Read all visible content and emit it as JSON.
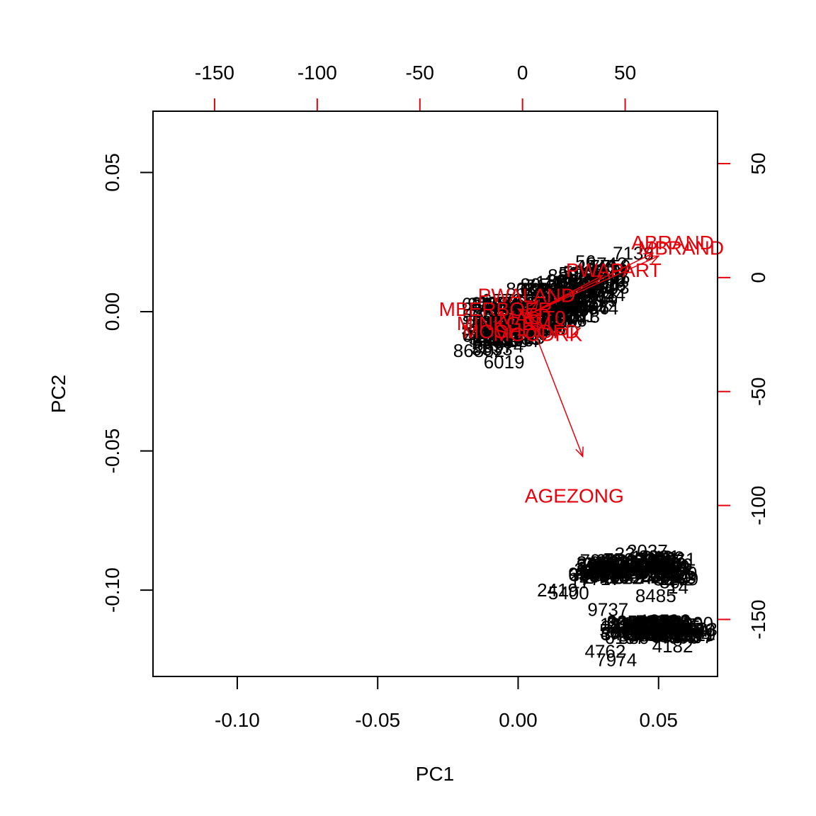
{
  "chart_data": {
    "type": "scatter",
    "title": "",
    "xlabel": "PC1",
    "ylabel": "PC2",
    "xlim": [
      -0.13,
      0.071
    ],
    "ylim": [
      -0.131,
      0.072
    ],
    "x_ticks": [
      -0.1,
      -0.05,
      0.0,
      0.05
    ],
    "x_tick_labels": [
      "-0.10",
      "-0.05",
      "0.00",
      "0.05"
    ],
    "y_ticks": [
      -0.1,
      -0.05,
      0.0,
      0.05
    ],
    "y_tick_labels": [
      "-0.10",
      "-0.05",
      "0.00",
      "0.05"
    ],
    "top_axis": {
      "color": "#e8000b",
      "ticks": [
        -150,
        -100,
        -50,
        0,
        50
      ],
      "tick_labels": [
        "-150",
        "-100",
        "-50",
        "0",
        "50"
      ],
      "lim": [
        -180,
        95
      ]
    },
    "right_axis": {
      "color": "#e8000b",
      "ticks": [
        50,
        0,
        -50,
        -100,
        -150
      ],
      "tick_labels": [
        "50",
        "0",
        "-50",
        "-100",
        "-150"
      ],
      "lim": [
        -175,
        73
      ]
    },
    "observation_color": "#000000",
    "variable_color": "#e8000b",
    "observations": [
      {
        "label": "2037",
        "x": 0.046,
        "y": -0.086
      },
      {
        "label": "32",
        "x": 0.038,
        "y": -0.087
      },
      {
        "label": "69",
        "x": 0.031,
        "y": -0.091
      },
      {
        "label": "61",
        "x": 0.027,
        "y": -0.093
      },
      {
        "label": "17",
        "x": 0.022,
        "y": -0.097
      },
      {
        "label": "2419",
        "x": 0.014,
        "y": -0.1
      },
      {
        "label": "5400",
        "x": 0.018,
        "y": -0.101
      },
      {
        "label": "30",
        "x": 0.054,
        "y": -0.097
      },
      {
        "label": "14",
        "x": 0.057,
        "y": -0.099
      },
      {
        "label": "8485",
        "x": 0.049,
        "y": -0.102
      },
      {
        "label": "9737",
        "x": 0.032,
        "y": -0.107
      },
      {
        "label": "85",
        "x": 0.041,
        "y": -0.112
      },
      {
        "label": "8516",
        "x": 0.054,
        "y": -0.111
      },
      {
        "label": "55",
        "x": 0.063,
        "y": -0.114
      },
      {
        "label": "8804",
        "x": 0.043,
        "y": -0.117
      },
      {
        "label": "4182",
        "x": 0.055,
        "y": -0.12
      },
      {
        "label": "4762",
        "x": 0.031,
        "y": -0.122
      },
      {
        "label": "7974",
        "x": 0.035,
        "y": -0.125
      },
      {
        "label": "6019",
        "x": -0.005,
        "y": -0.018
      },
      {
        "label": "86802",
        "x": -0.014,
        "y": -0.014
      },
      {
        "label": "7138",
        "x": 0.041,
        "y": 0.021
      },
      {
        "label": "44",
        "x": 0.031,
        "y": 0.005
      },
      {
        "label": "56",
        "x": 0.024,
        "y": 0.018
      }
    ],
    "variables": [
      {
        "label": "ABRAND",
        "x": 0.055,
        "y": 0.025
      },
      {
        "label": "MBRAND",
        "x": 0.058,
        "y": 0.023
      },
      {
        "label": "PWAPART",
        "x": 0.034,
        "y": 0.015
      },
      {
        "label": "PWALAND",
        "x": 0.003,
        "y": 0.006
      },
      {
        "label": "MBERBOER",
        "x": -0.008,
        "y": 0.001
      },
      {
        "label": "MAUT0",
        "x": 0.005,
        "y": -0.002
      },
      {
        "label": "MINKGEM",
        "x": -0.005,
        "y": -0.004
      },
      {
        "label": "MOSHOOFD",
        "x": 0.001,
        "y": -0.007
      },
      {
        "label": "MGODRK",
        "x": 0.007,
        "y": -0.008
      },
      {
        "label": "AGEZONG",
        "x": 0.02,
        "y": -0.066
      }
    ]
  }
}
